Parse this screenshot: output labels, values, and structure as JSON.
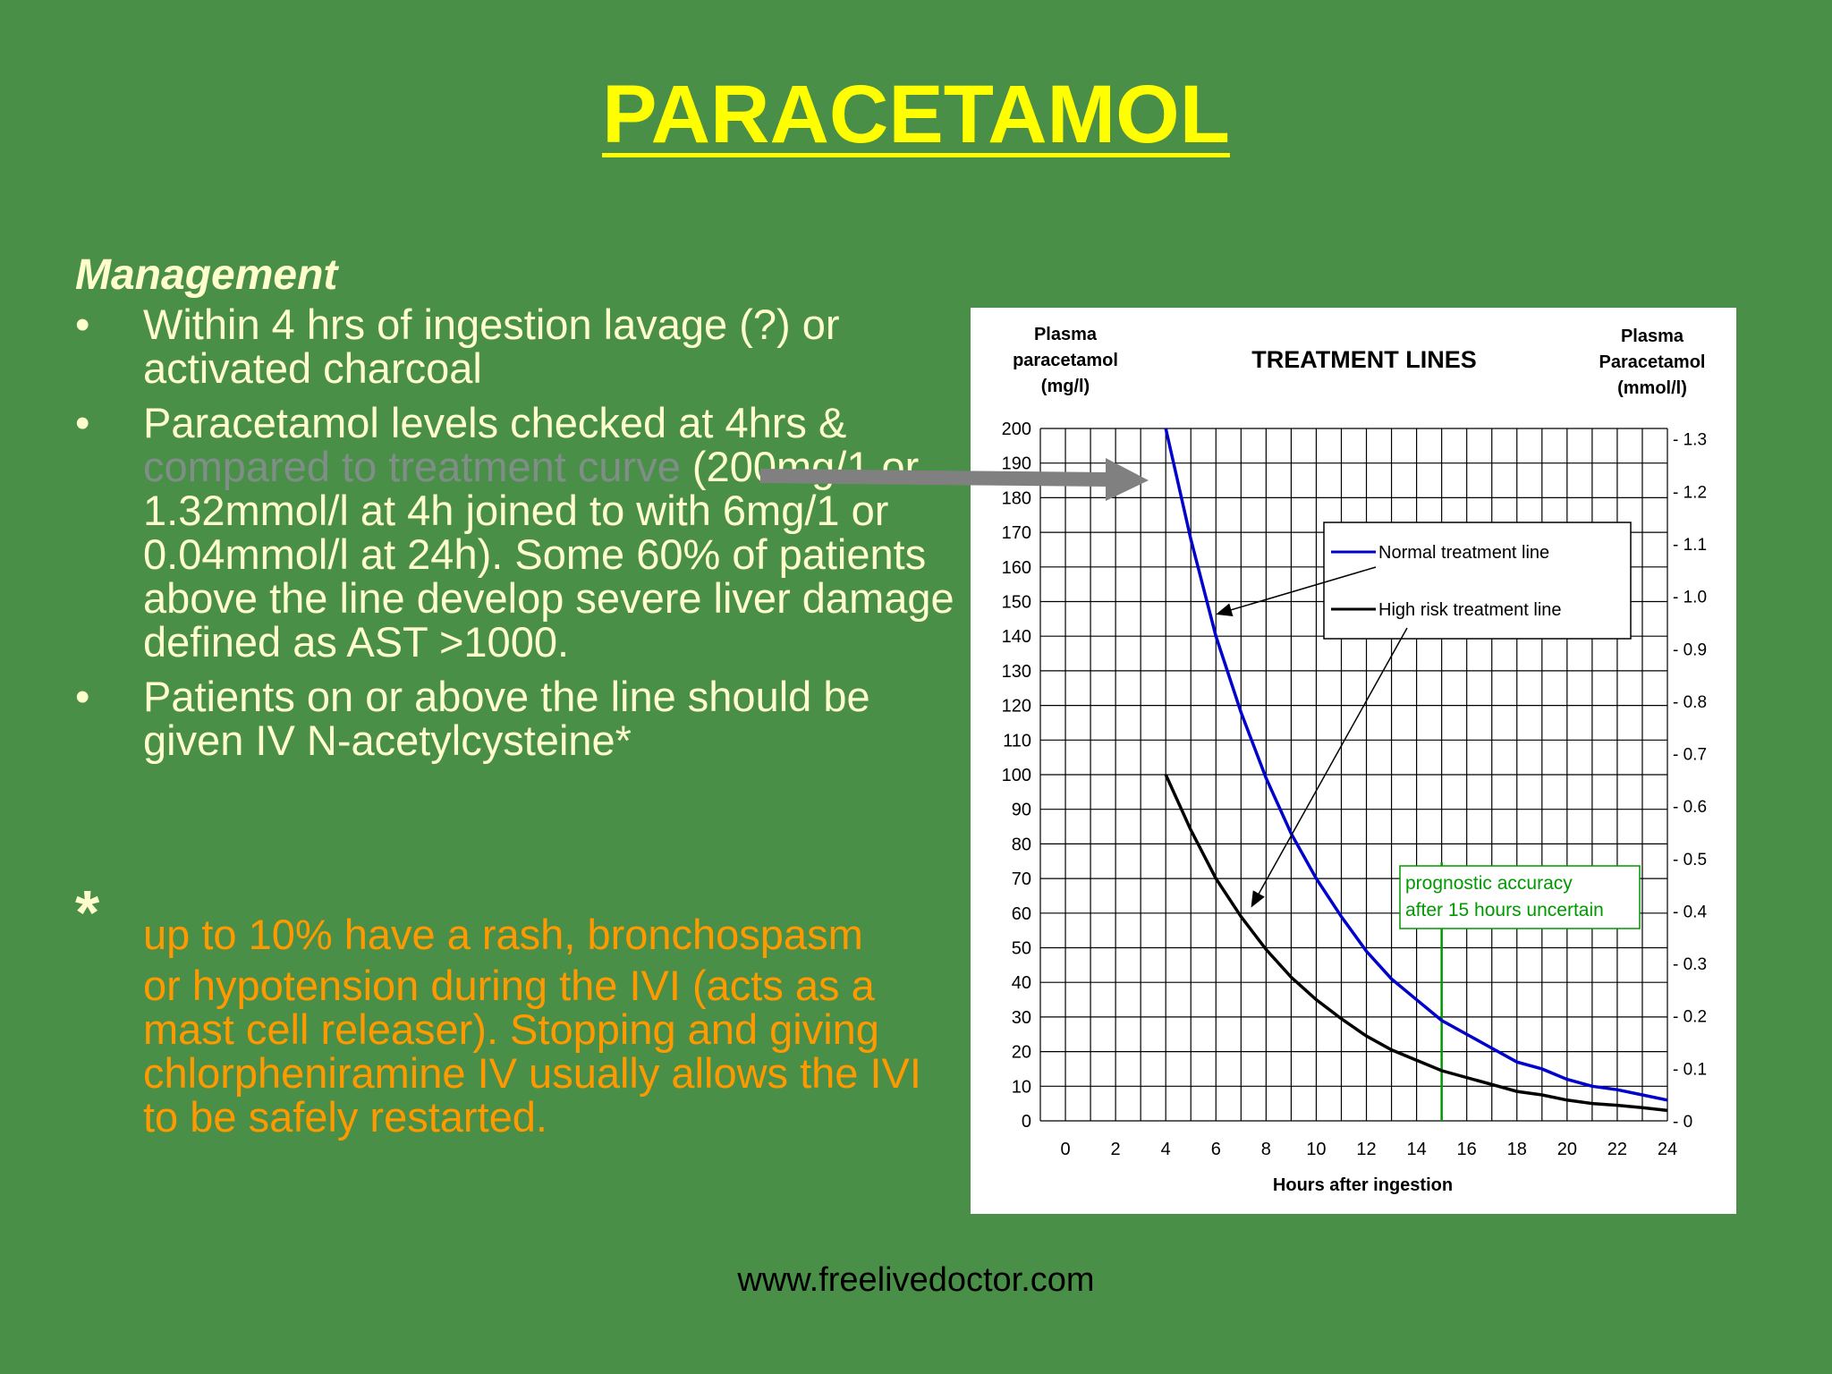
{
  "slide": {
    "title": "PARACETAMOL",
    "heading": "Management",
    "bullets": [
      {
        "lines": [
          "Within 4 hrs of ingestion lavage (?) or activated charcoal"
        ]
      },
      {
        "text_before": "Paracetamol levels checked at 4hrs & ",
        "faded": "compared to treatment curve",
        "text_after": " (200mg/1 or 1.32mmol/l at 4h joined to with 6mg/1 or 0.04mmol/l at 24h). Some 60% of patients above the line develop severe liver damage defined as AST >1000."
      },
      {
        "lines": [
          "Patients on or above the line should be given IV N-acetylcysteine*"
        ]
      }
    ],
    "bullet_symbol": "•",
    "footnote_star": "*",
    "footnote_first": "up to 10% have a rash, bronchospasm",
    "footnote_rest": "or hypotension during the IVI (acts as a mast cell releaser). Stopping and giving chlorpheniramine IV usually allows the IVI to be safely restarted.",
    "footer": "www.freelivedoctor.com"
  },
  "colors": {
    "background": "#4a8f47",
    "title": "#ffff00",
    "body_text": "#ffffcc",
    "footnote_text": "#ff9900",
    "normal_line": "#0000cc",
    "high_risk_line": "#000000",
    "prognostic_line": "#009900",
    "pointer_arrow": "#808080"
  },
  "chart_data": {
    "type": "line",
    "title": "TREATMENT LINES",
    "ylabel_left": [
      "Plasma",
      "paracetamol",
      "(mg/l)"
    ],
    "ylabel_right": [
      "Plasma",
      "Paracetamol",
      "(mmol/l)"
    ],
    "xlabel": "Hours after ingestion",
    "xlim": [
      -1,
      24
    ],
    "ylim": [
      0,
      200
    ],
    "x_ticks": [
      0,
      2,
      4,
      6,
      8,
      10,
      12,
      14,
      16,
      18,
      20,
      22,
      24
    ],
    "y_ticks": [
      0,
      10,
      20,
      30,
      40,
      50,
      60,
      70,
      80,
      90,
      100,
      110,
      120,
      130,
      140,
      150,
      160,
      170,
      180,
      190,
      200
    ],
    "y2_ticks": [
      0,
      0.1,
      0.2,
      0.3,
      0.4,
      0.5,
      0.6,
      0.7,
      0.8,
      0.9,
      1.0,
      1.1,
      1.2,
      1.3
    ],
    "y2_tick_labels": [
      "- 0",
      "- 0.1",
      "- 0.2",
      "- 0.3",
      "- 0.4",
      "- 0.5",
      "- 0.6",
      "- 0.7",
      "- 0.8",
      "- 0.9",
      "- 1.0",
      "- 1.1",
      "- 1.2",
      "- 1.3"
    ],
    "y2_max": 1.32,
    "grid": true,
    "series": [
      {
        "name": "Normal treatment line",
        "color": "#0000cc",
        "x": [
          4,
          5,
          6,
          7,
          8,
          9,
          10,
          11,
          12,
          13,
          14,
          15,
          16,
          17,
          18,
          19,
          20,
          21,
          22,
          23,
          24
        ],
        "values": [
          200,
          168,
          140,
          118,
          99,
          83,
          70,
          59,
          49,
          41,
          35,
          29,
          25,
          21,
          17,
          15,
          12,
          10,
          9,
          7.5,
          6
        ]
      },
      {
        "name": "High risk treatment line",
        "color": "#000000",
        "x": [
          4,
          5,
          6,
          7,
          8,
          9,
          10,
          11,
          12,
          13,
          14,
          15,
          16,
          17,
          18,
          19,
          20,
          21,
          22,
          23,
          24
        ],
        "values": [
          100,
          84,
          70,
          59,
          49.5,
          41.5,
          35,
          29.5,
          24.5,
          20.5,
          17.5,
          14.5,
          12.5,
          10.5,
          8.5,
          7.5,
          6,
          5,
          4.5,
          3.8,
          3
        ]
      }
    ],
    "legend": {
      "placement": "top-right",
      "entries": [
        "Normal treatment line",
        "High risk treatment line"
      ]
    },
    "annotation": {
      "lines": [
        "prognostic accuracy",
        "after 15 hours uncertain"
      ],
      "x": 15,
      "color": "#009900"
    }
  }
}
